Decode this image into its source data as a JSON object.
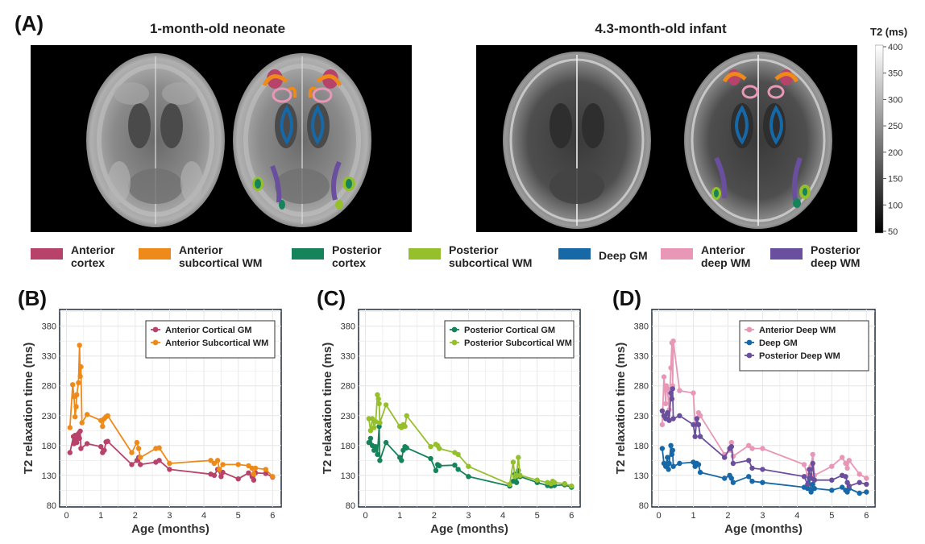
{
  "panel_labels": {
    "a": "(A)",
    "b": "(B)",
    "c": "(C)",
    "d": "(D)"
  },
  "panel_a": {
    "title_left": "1-month-old neonate",
    "title_right": "4.3-month-old infant",
    "colorbar": {
      "title": "T2 (ms)",
      "ticks": [
        "400",
        "350",
        "300",
        "250",
        "200",
        "150",
        "100",
        "50"
      ]
    },
    "legend": [
      {
        "l1": "Anterior",
        "l2": "cortex",
        "color": "#b8436a"
      },
      {
        "l1": "Anterior",
        "l2": "subcortical WM",
        "color": "#ee8a1a"
      },
      {
        "l1": "Posterior",
        "l2": "cortex",
        "color": "#15845a"
      },
      {
        "l1": "Posterior",
        "l2": "subcortical WM",
        "color": "#96bf2c"
      },
      {
        "l1": "Deep GM",
        "l2": "",
        "color": "#1668a7"
      },
      {
        "l1": "Anterior",
        "l2": "deep WM",
        "color": "#e897b6"
      },
      {
        "l1": "Posterior",
        "l2": "deep WM",
        "color": "#6a4f9e"
      }
    ]
  },
  "axes_common": {
    "ylabel": "T2 relaxation time (ms)",
    "xlabel": "Age (months)",
    "yticks": [
      "80",
      "130",
      "180",
      "230",
      "280",
      "330",
      "380"
    ],
    "xticks": [
      "0",
      "1",
      "2",
      "3",
      "4",
      "5",
      "6"
    ]
  },
  "chart_data": [
    {
      "type": "line",
      "panel": "B",
      "xlabel": "Age (months)",
      "ylabel": "T2 relaxation time (ms)",
      "xlim": [
        -0.2,
        6.25
      ],
      "ylim": [
        77,
        408
      ],
      "legend_position": "top-right",
      "series": [
        {
          "name": "Anterior Cortical GM",
          "color": "#b8436a",
          "points": [
            [
              0.1,
              168
            ],
            [
              0.2,
              195
            ],
            [
              0.22,
              183
            ],
            [
              0.25,
              197
            ],
            [
              0.28,
              190
            ],
            [
              0.3,
              185
            ],
            [
              0.35,
              200
            ],
            [
              0.38,
              192
            ],
            [
              0.4,
              204
            ],
            [
              0.42,
              175
            ],
            [
              0.6,
              183
            ],
            [
              1.0,
              178
            ],
            [
              1.05,
              168
            ],
            [
              1.1,
              172
            ],
            [
              1.15,
              186
            ],
            [
              1.2,
              187
            ],
            [
              1.9,
              148
            ],
            [
              2.05,
              155
            ],
            [
              2.1,
              160
            ],
            [
              2.15,
              148
            ],
            [
              2.6,
              152
            ],
            [
              2.7,
              155
            ],
            [
              3.0,
              140
            ],
            [
              4.2,
              132
            ],
            [
              4.3,
              130
            ],
            [
              4.4,
              140
            ],
            [
              4.5,
              128
            ],
            [
              4.55,
              135
            ],
            [
              5.0,
              124
            ],
            [
              5.3,
              134
            ],
            [
              5.4,
              128
            ],
            [
              5.45,
              122
            ],
            [
              5.5,
              134
            ],
            [
              5.8,
              133
            ],
            [
              6.0,
              127
            ]
          ]
        },
        {
          "name": "Anterior Subcortical WM",
          "color": "#ee8a1a",
          "points": [
            [
              0.1,
              210
            ],
            [
              0.18,
              282
            ],
            [
              0.22,
              262
            ],
            [
              0.25,
              228
            ],
            [
              0.28,
              245
            ],
            [
              0.3,
              265
            ],
            [
              0.35,
              285
            ],
            [
              0.38,
              348
            ],
            [
              0.4,
              296
            ],
            [
              0.42,
              312
            ],
            [
              0.45,
              218
            ],
            [
              0.6,
              232
            ],
            [
              1.0,
              222
            ],
            [
              1.05,
              212
            ],
            [
              1.1,
              225
            ],
            [
              1.15,
              228
            ],
            [
              1.2,
              230
            ],
            [
              1.9,
              168
            ],
            [
              2.05,
              185
            ],
            [
              2.1,
              175
            ],
            [
              2.15,
              160
            ],
            [
              2.6,
              175
            ],
            [
              2.7,
              176
            ],
            [
              3.0,
              150
            ],
            [
              4.2,
              155
            ],
            [
              4.3,
              150
            ],
            [
              4.4,
              155
            ],
            [
              4.45,
              140
            ],
            [
              4.55,
              148
            ],
            [
              5.0,
              148
            ],
            [
              5.3,
              146
            ],
            [
              5.4,
              142
            ],
            [
              5.45,
              132
            ],
            [
              5.5,
              142
            ],
            [
              5.8,
              140
            ],
            [
              6.0,
              128
            ]
          ]
        }
      ]
    },
    {
      "type": "line",
      "panel": "C",
      "xlabel": "Age (months)",
      "ylabel": "T2 relaxation time (ms)",
      "xlim": [
        -0.2,
        6.25
      ],
      "ylim": [
        77,
        408
      ],
      "legend_position": "top-right",
      "series": [
        {
          "name": "Posterior Cortical GM",
          "color": "#15845a",
          "points": [
            [
              0.1,
              185
            ],
            [
              0.15,
              192
            ],
            [
              0.2,
              180
            ],
            [
              0.25,
              172
            ],
            [
              0.3,
              178
            ],
            [
              0.35,
              165
            ],
            [
              0.4,
              212
            ],
            [
              0.42,
              155
            ],
            [
              0.6,
              185
            ],
            [
              1.0,
              160
            ],
            [
              1.05,
              155
            ],
            [
              1.1,
              172
            ],
            [
              1.15,
              178
            ],
            [
              1.2,
              176
            ],
            [
              1.9,
              158
            ],
            [
              2.05,
              138
            ],
            [
              2.1,
              148
            ],
            [
              2.15,
              146
            ],
            [
              2.6,
              147
            ],
            [
              2.7,
              140
            ],
            [
              3.0,
              128
            ],
            [
              4.2,
              112
            ],
            [
              4.3,
              120
            ],
            [
              4.35,
              132
            ],
            [
              4.4,
              118
            ],
            [
              4.45,
              138
            ],
            [
              4.5,
              128
            ],
            [
              5.0,
              118
            ],
            [
              5.3,
              113
            ],
            [
              5.4,
              112
            ],
            [
              5.45,
              118
            ],
            [
              5.5,
              113
            ],
            [
              5.8,
              114
            ],
            [
              6.0,
              110
            ]
          ]
        },
        {
          "name": "Posterior Subcortical WM",
          "color": "#96bf2c",
          "points": [
            [
              0.1,
              225
            ],
            [
              0.15,
              205
            ],
            [
              0.2,
              225
            ],
            [
              0.25,
              210
            ],
            [
              0.3,
              220
            ],
            [
              0.35,
              265
            ],
            [
              0.38,
              258
            ],
            [
              0.4,
              250
            ],
            [
              0.42,
              218
            ],
            [
              0.6,
              248
            ],
            [
              1.0,
              212
            ],
            [
              1.05,
              210
            ],
            [
              1.1,
              215
            ],
            [
              1.15,
              212
            ],
            [
              1.2,
              230
            ],
            [
              1.9,
              178
            ],
            [
              2.05,
              182
            ],
            [
              2.1,
              180
            ],
            [
              2.15,
              175
            ],
            [
              2.6,
              168
            ],
            [
              2.7,
              165
            ],
            [
              3.0,
              145
            ],
            [
              4.2,
              115
            ],
            [
              4.3,
              152
            ],
            [
              4.35,
              128
            ],
            [
              4.4,
              130
            ],
            [
              4.45,
              160
            ],
            [
              4.5,
              130
            ],
            [
              5.0,
              122
            ],
            [
              5.3,
              118
            ],
            [
              5.4,
              116
            ],
            [
              5.45,
              120
            ],
            [
              5.5,
              118
            ],
            [
              5.8,
              116
            ],
            [
              6.0,
              112
            ]
          ]
        }
      ]
    },
    {
      "type": "line",
      "panel": "D",
      "xlabel": "Age (months)",
      "ylabel": "T2 relaxation time (ms)",
      "xlim": [
        -0.2,
        6.25
      ],
      "ylim": [
        77,
        408
      ],
      "legend_position": "top-right",
      "series": [
        {
          "name": "Anterior Deep WM",
          "color": "#e897b6",
          "points": [
            [
              0.1,
              215
            ],
            [
              0.15,
              295
            ],
            [
              0.2,
              250
            ],
            [
              0.22,
              280
            ],
            [
              0.25,
              275
            ],
            [
              0.3,
              240
            ],
            [
              0.35,
              310
            ],
            [
              0.38,
              352
            ],
            [
              0.4,
              280
            ],
            [
              0.42,
              355
            ],
            [
              0.6,
              272
            ],
            [
              1.0,
              268
            ],
            [
              1.05,
              215
            ],
            [
              1.1,
              225
            ],
            [
              1.15,
              235
            ],
            [
              1.2,
              230
            ],
            [
              1.9,
              165
            ],
            [
              2.05,
              172
            ],
            [
              2.1,
              185
            ],
            [
              2.15,
              162
            ],
            [
              2.6,
              180
            ],
            [
              2.7,
              175
            ],
            [
              3.0,
              175
            ],
            [
              4.2,
              148
            ],
            [
              4.3,
              130
            ],
            [
              4.4,
              145
            ],
            [
              4.45,
              165
            ],
            [
              4.5,
              130
            ],
            [
              5.0,
              145
            ],
            [
              5.3,
              160
            ],
            [
              5.4,
              150
            ],
            [
              5.45,
              142
            ],
            [
              5.5,
              155
            ],
            [
              5.8,
              132
            ],
            [
              6.0,
              125
            ]
          ]
        },
        {
          "name": "Deep GM",
          "color": "#1668a7",
          "points": [
            [
              0.1,
              175
            ],
            [
              0.15,
              150
            ],
            [
              0.2,
              145
            ],
            [
              0.25,
              160
            ],
            [
              0.28,
              140
            ],
            [
              0.3,
              150
            ],
            [
              0.35,
              180
            ],
            [
              0.38,
              165
            ],
            [
              0.4,
              172
            ],
            [
              0.42,
              145
            ],
            [
              0.6,
              150
            ],
            [
              1.0,
              152
            ],
            [
              1.05,
              145
            ],
            [
              1.1,
              150
            ],
            [
              1.15,
              148
            ],
            [
              1.2,
              135
            ],
            [
              1.9,
              125
            ],
            [
              2.05,
              130
            ],
            [
              2.1,
              125
            ],
            [
              2.15,
              118
            ],
            [
              2.6,
              128
            ],
            [
              2.7,
              120
            ],
            [
              3.0,
              118
            ],
            [
              4.2,
              110
            ],
            [
              4.3,
              108
            ],
            [
              4.35,
              125
            ],
            [
              4.4,
              102
            ],
            [
              4.45,
              115
            ],
            [
              4.5,
              108
            ],
            [
              5.0,
              105
            ],
            [
              5.3,
              110
            ],
            [
              5.4,
              105
            ],
            [
              5.45,
              102
            ],
            [
              5.5,
              108
            ],
            [
              5.8,
              100
            ],
            [
              6.0,
              102
            ]
          ]
        },
        {
          "name": "Posterior Deep WM",
          "color": "#6a4f9e",
          "points": [
            [
              0.1,
              238
            ],
            [
              0.15,
              230
            ],
            [
              0.2,
              225
            ],
            [
              0.25,
              235
            ],
            [
              0.3,
              222
            ],
            [
              0.35,
              268
            ],
            [
              0.38,
              258
            ],
            [
              0.4,
              275
            ],
            [
              0.42,
              225
            ],
            [
              0.6,
              230
            ],
            [
              1.0,
              215
            ],
            [
              1.05,
              195
            ],
            [
              1.1,
              225
            ],
            [
              1.15,
              215
            ],
            [
              1.2,
              195
            ],
            [
              1.9,
              160
            ],
            [
              2.05,
              175
            ],
            [
              2.1,
              178
            ],
            [
              2.15,
              150
            ],
            [
              2.6,
              155
            ],
            [
              2.7,
              142
            ],
            [
              3.0,
              140
            ],
            [
              4.2,
              128
            ],
            [
              4.3,
              115
            ],
            [
              4.35,
              140
            ],
            [
              4.4,
              125
            ],
            [
              4.45,
              150
            ],
            [
              4.5,
              122
            ],
            [
              5.0,
              122
            ],
            [
              5.3,
              130
            ],
            [
              5.4,
              128
            ],
            [
              5.45,
              118
            ],
            [
              5.5,
              112
            ],
            [
              5.8,
              118
            ],
            [
              6.0,
              115
            ]
          ]
        }
      ]
    }
  ]
}
